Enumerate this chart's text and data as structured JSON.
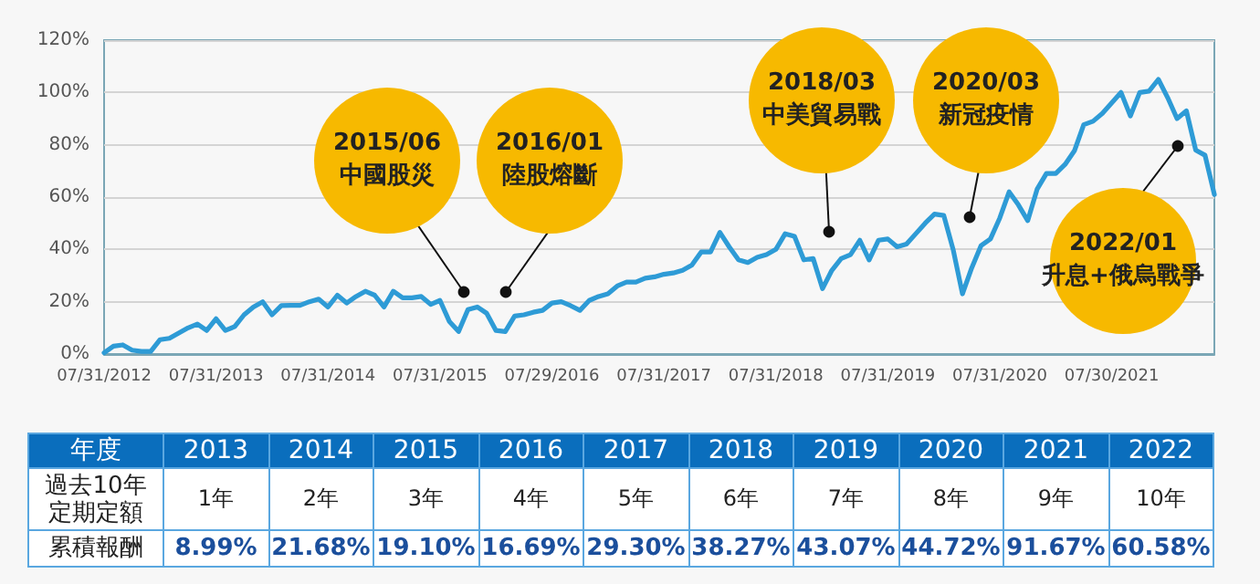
{
  "chart_data": [
    {
      "type": "line",
      "categories": [
        "07/31/2012",
        null,
        null,
        null,
        null,
        null,
        null,
        null,
        null,
        null,
        null,
        null,
        "07/31/2013",
        null,
        null,
        null,
        null,
        null,
        null,
        null,
        null,
        null,
        null,
        null,
        "07/31/2014",
        null,
        null,
        null,
        null,
        null,
        null,
        null,
        null,
        null,
        null,
        null,
        "07/31/2015",
        null,
        null,
        null,
        null,
        null,
        null,
        null,
        null,
        null,
        null,
        null,
        "07/29/2016",
        null,
        null,
        null,
        null,
        null,
        null,
        null,
        null,
        null,
        null,
        null,
        "07/31/2017",
        null,
        null,
        null,
        null,
        null,
        null,
        null,
        null,
        null,
        null,
        null,
        "07/31/2018",
        null,
        null,
        null,
        null,
        null,
        null,
        null,
        null,
        null,
        null,
        null,
        "07/31/2019",
        null,
        null,
        null,
        null,
        null,
        null,
        null,
        null,
        null,
        null,
        null,
        "07/31/2020",
        null,
        null,
        null,
        null,
        null,
        null,
        null,
        null,
        null,
        null,
        null,
        "07/30/2021",
        null,
        null,
        null,
        null,
        null,
        null,
        null,
        null,
        null,
        null,
        null
      ],
      "series": [
        {
          "color": "#2e9bd6",
          "values": [
            0.5,
            3,
            3.5,
            1.5,
            1,
            1,
            5.5,
            6,
            8,
            10,
            11.5,
            9,
            13.5,
            9,
            10.5,
            15,
            18,
            20,
            15,
            18.5,
            18.6,
            18.6,
            20,
            21,
            18,
            22.5,
            19.5,
            22,
            24,
            22.5,
            18,
            24,
            21.5,
            21.5,
            22,
            19,
            20.5,
            12.5,
            8.6,
            17,
            18,
            15.6,
            9,
            8.6,
            14.5,
            15,
            16,
            16.7,
            19.5,
            20,
            18.5,
            16.7,
            20.5,
            22,
            23,
            26,
            27.5,
            27.5,
            29,
            29.5,
            30.5,
            31,
            32,
            34,
            39,
            39,
            46.5,
            41,
            36,
            35,
            37,
            38,
            40,
            46,
            45,
            36,
            36.5,
            25,
            32,
            36.5,
            38,
            43.5,
            36,
            43.5,
            44,
            41,
            42,
            46,
            50,
            53.5,
            53,
            40,
            23,
            33,
            41.5,
            44,
            52,
            62,
            57,
            51,
            63,
            69,
            69,
            72.5,
            77.7,
            87.7,
            89,
            92,
            96,
            100,
            91,
            100,
            100.5,
            105,
            98,
            90,
            93,
            78,
            76,
            61
          ]
        }
      ],
      "ylim": [
        0,
        120
      ],
      "yticks": [
        {
          "value": 0,
          "label": "0%"
        },
        {
          "value": 20,
          "label": "20%"
        },
        {
          "value": 40,
          "label": "40%"
        },
        {
          "value": 60,
          "label": "60%"
        },
        {
          "value": 80,
          "label": "80%"
        },
        {
          "value": 100,
          "label": "100%"
        },
        {
          "value": 120,
          "label": "120%"
        }
      ],
      "grid": "y",
      "annotations": [
        "2015/06\n中國股災",
        "2016/01\n陸股熔斷",
        "2018/03\n中美貿易戰",
        "2020/03\n新冠疫情",
        "2022/01\n升息+俄烏戰爭"
      ]
    },
    {
      "type": "heatmap",
      "xlabel": "年度",
      "categories": [
        "2013",
        "2014",
        "2015",
        "2016",
        "2017",
        "2018",
        "2019",
        "2020",
        "2021",
        "2022"
      ],
      "y_categories": [
        "過去10年定期定額",
        "累積報酬"
      ],
      "cells": [
        [
          1,
          2,
          3,
          4,
          5,
          6,
          7,
          8,
          9,
          10
        ],
        [
          8.99,
          21.68,
          19.1,
          16.69,
          29.3,
          38.27,
          43.07,
          44.72,
          91.67,
          60.58
        ]
      ],
      "cell_labels": [
        [
          "1年",
          "2年",
          "3年",
          "4年",
          "5年",
          "6年",
          "7年",
          "8年",
          "9年",
          "10年"
        ],
        [
          "8.99%",
          "21.68%",
          "19.10%",
          "16.69%",
          "29.30%",
          "38.27%",
          "43.07%",
          "44.72%",
          "91.67%",
          "60.58%"
        ]
      ]
    }
  ]
}
